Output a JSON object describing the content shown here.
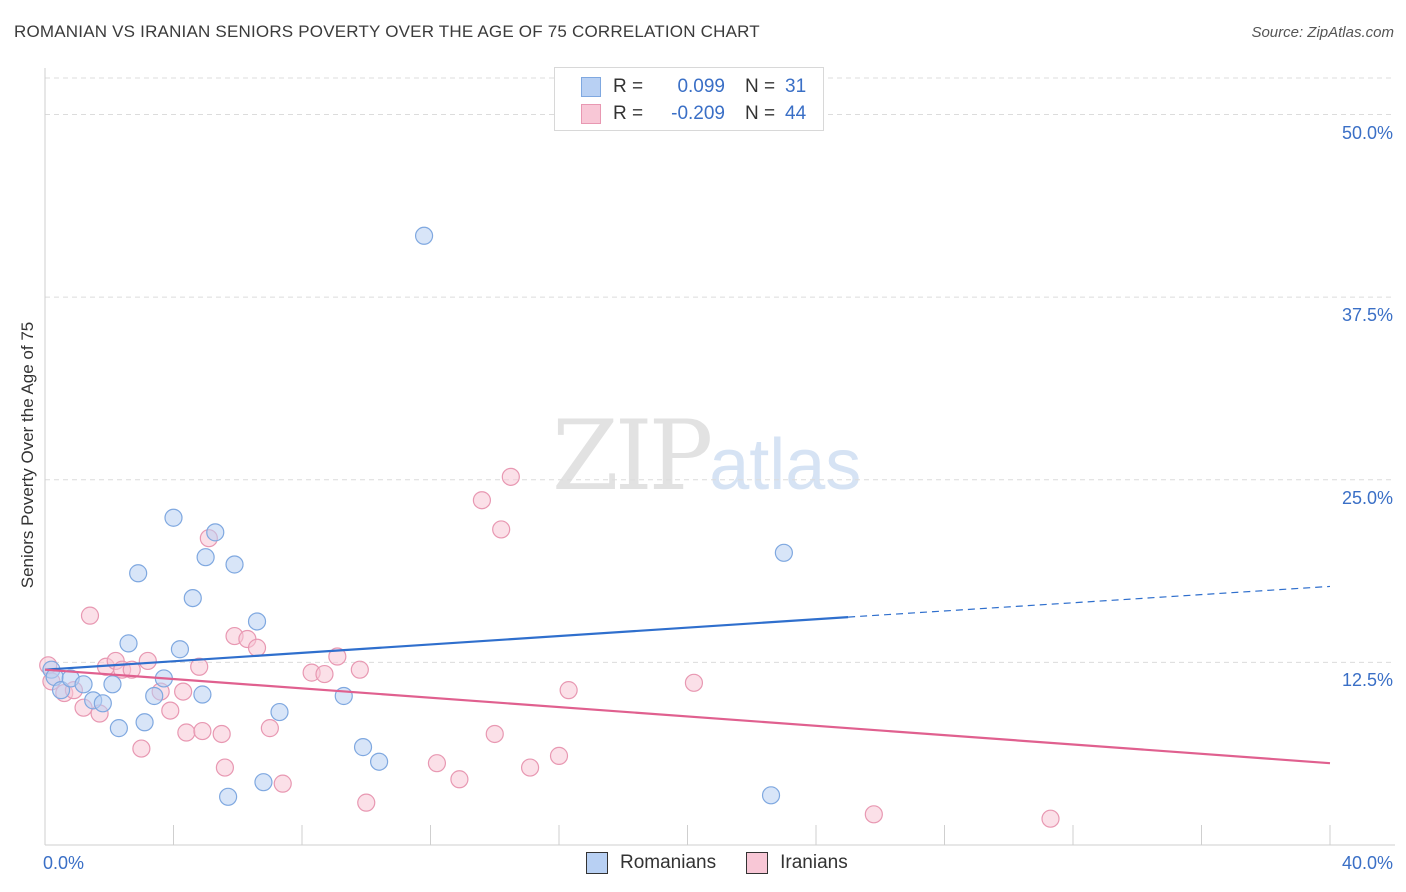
{
  "title": "ROMANIAN VS IRANIAN SENIORS POVERTY OVER THE AGE OF 75 CORRELATION CHART",
  "source": "Source: ZipAtlas.com",
  "watermark": {
    "zip": "ZIP",
    "atlas": "atlas"
  },
  "legend": {
    "r_label": "R =",
    "n_label": "N =",
    "rows": [
      {
        "r": "0.099",
        "n": "31"
      },
      {
        "r": "-0.209",
        "n": "44"
      }
    ]
  },
  "colors": {
    "romanians_fill": "#b8d0f3",
    "romanians_stroke": "#7fa8e0",
    "romanians_line": "#2f6fcd",
    "iranians_fill": "#f8c7d6",
    "iranians_stroke": "#e898b2",
    "iranians_line": "#e0608f",
    "tick_text": "#3a6fc6"
  },
  "chart_data": {
    "type": "scatter",
    "title": "ROMANIAN VS IRANIAN SENIORS POVERTY OVER THE AGE OF 75 CORRELATION CHART",
    "xlabel": "",
    "ylabel": "Seniors Poverty Over the Age of 75",
    "xlim": [
      0,
      40
    ],
    "ylim": [
      0,
      52.5
    ],
    "x_tick_labels": [
      "0.0%",
      "40.0%"
    ],
    "y_ticks": [
      12.5,
      25.0,
      37.5,
      50.0
    ],
    "y_tick_labels": [
      "12.5%",
      "25.0%",
      "37.5%",
      "50.0%"
    ],
    "grid": true,
    "legend_position": "top-center",
    "series": [
      {
        "name": "Romanians",
        "points": [
          [
            0.2,
            12.0
          ],
          [
            0.3,
            11.5
          ],
          [
            0.5,
            10.6
          ],
          [
            0.8,
            11.4
          ],
          [
            1.2,
            11.0
          ],
          [
            1.5,
            9.9
          ],
          [
            1.8,
            9.7
          ],
          [
            2.1,
            11.0
          ],
          [
            2.3,
            8.0
          ],
          [
            2.6,
            13.8
          ],
          [
            2.9,
            18.6
          ],
          [
            3.1,
            8.4
          ],
          [
            3.4,
            10.2
          ],
          [
            3.7,
            11.4
          ],
          [
            4.0,
            22.4
          ],
          [
            4.2,
            13.4
          ],
          [
            4.6,
            16.9
          ],
          [
            4.9,
            10.3
          ],
          [
            5.0,
            19.7
          ],
          [
            5.3,
            21.4
          ],
          [
            5.7,
            3.3
          ],
          [
            5.9,
            19.2
          ],
          [
            6.6,
            15.3
          ],
          [
            6.8,
            4.3
          ],
          [
            7.3,
            9.1
          ],
          [
            9.3,
            10.2
          ],
          [
            9.9,
            6.7
          ],
          [
            10.4,
            5.7
          ],
          [
            11.8,
            41.7
          ],
          [
            22.6,
            3.4
          ],
          [
            23.0,
            20.0
          ]
        ]
      },
      {
        "name": "Iranians",
        "points": [
          [
            0.1,
            12.3
          ],
          [
            0.2,
            11.2
          ],
          [
            0.6,
            10.4
          ],
          [
            0.9,
            10.6
          ],
          [
            1.2,
            9.4
          ],
          [
            1.4,
            15.7
          ],
          [
            1.7,
            9.0
          ],
          [
            1.9,
            12.2
          ],
          [
            2.2,
            12.6
          ],
          [
            2.4,
            12.0
          ],
          [
            2.7,
            12.0
          ],
          [
            3.0,
            6.6
          ],
          [
            3.2,
            12.6
          ],
          [
            3.6,
            10.5
          ],
          [
            3.9,
            9.2
          ],
          [
            4.3,
            10.5
          ],
          [
            4.4,
            7.7
          ],
          [
            4.8,
            12.2
          ],
          [
            4.9,
            7.8
          ],
          [
            5.1,
            21.0
          ],
          [
            5.5,
            7.6
          ],
          [
            5.6,
            5.3
          ],
          [
            5.9,
            14.3
          ],
          [
            6.3,
            14.1
          ],
          [
            6.6,
            13.5
          ],
          [
            7.0,
            8.0
          ],
          [
            7.4,
            4.2
          ],
          [
            8.3,
            11.8
          ],
          [
            8.7,
            11.7
          ],
          [
            9.1,
            12.9
          ],
          [
            9.8,
            12.0
          ],
          [
            10.0,
            2.9
          ],
          [
            12.2,
            5.6
          ],
          [
            12.9,
            4.5
          ],
          [
            13.6,
            23.6
          ],
          [
            14.0,
            7.6
          ],
          [
            14.2,
            21.6
          ],
          [
            14.5,
            25.2
          ],
          [
            15.1,
            5.3
          ],
          [
            16.0,
            6.1
          ],
          [
            16.3,
            10.6
          ],
          [
            20.2,
            11.1
          ],
          [
            25.8,
            2.1
          ],
          [
            31.3,
            1.8
          ]
        ]
      }
    ],
    "trend_lines": [
      {
        "name": "Romanians",
        "x": [
          0,
          25,
          40
        ],
        "y": [
          12.0,
          15.6,
          17.7
        ],
        "solid_until_x": 25
      },
      {
        "name": "Iranians",
        "x": [
          0,
          40
        ],
        "y": [
          12.0,
          5.6
        ]
      }
    ]
  },
  "bottom_legend": [
    "Romanians",
    "Iranians"
  ]
}
